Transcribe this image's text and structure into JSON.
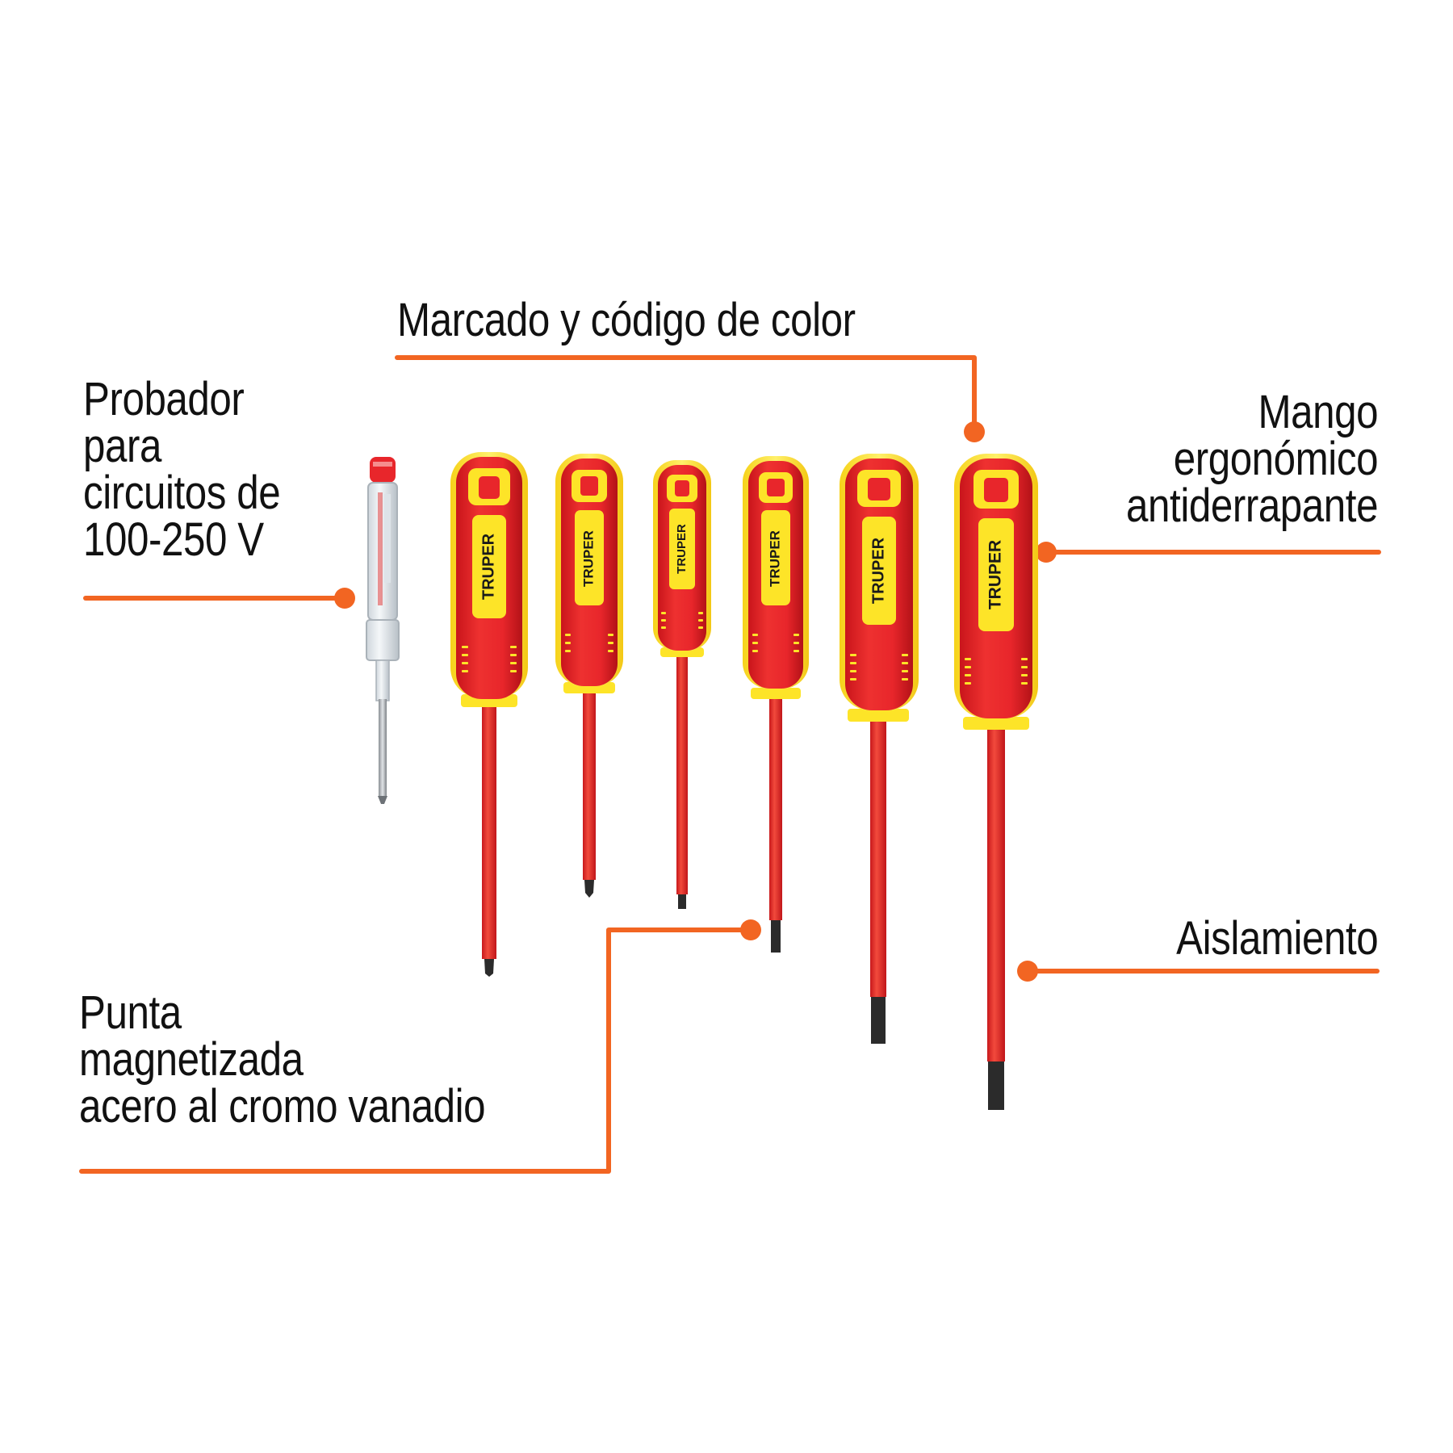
{
  "callouts": {
    "marcado": {
      "text": "Marcado y código de color"
    },
    "probador": {
      "lines": [
        "Probador",
        "para",
        "circuitos de",
        "100-250 V"
      ]
    },
    "mango": {
      "lines": [
        "Mango",
        "ergonómico",
        "antiderrapante"
      ]
    },
    "aislamiento": {
      "text": "Aislamiento"
    },
    "punta": {
      "lines": [
        "Punta",
        "magnetizada",
        "acero al cromo vanadio"
      ]
    }
  },
  "brand": "TRUPER",
  "colors": {
    "accent_line": "#f26522",
    "handle_red": "#e8262b",
    "handle_yellow": "#fde428",
    "shaft_red": "#e52a2a",
    "text": "#111111"
  }
}
